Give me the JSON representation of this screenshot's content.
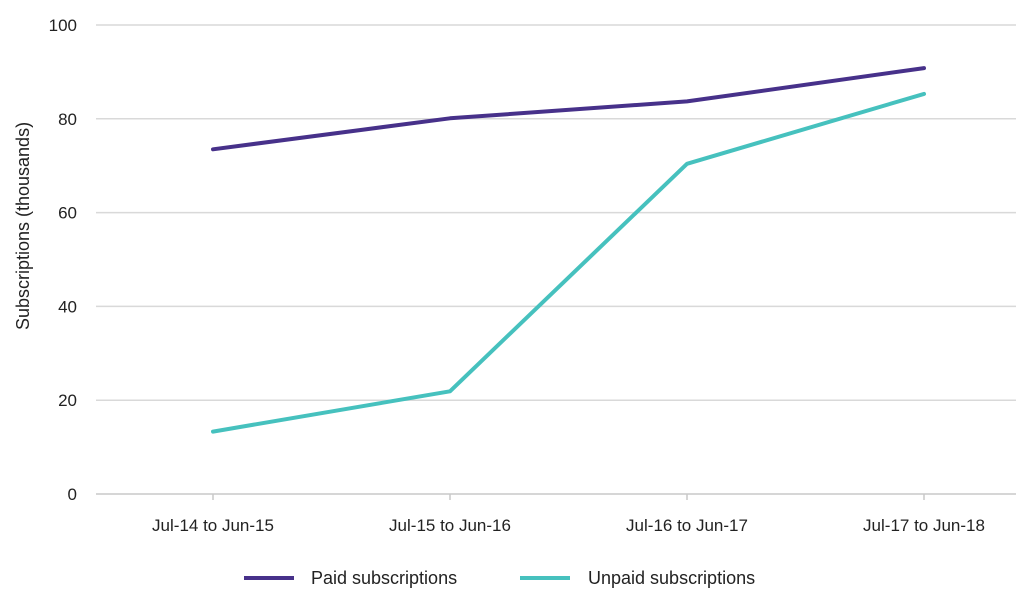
{
  "chart_data": {
    "type": "line",
    "title": "",
    "xlabel": "",
    "ylabel": "Subscriptions (thousands)",
    "categories": [
      "Jul-14 to Jun-15",
      "Jul-15 to Jun-16",
      "Jul-16 to Jun-17",
      "Jul-17 to Jun-18"
    ],
    "ylim": [
      0,
      100
    ],
    "yticks": [
      0,
      20,
      40,
      60,
      80,
      100
    ],
    "grid": true,
    "legend_position": "bottom",
    "series": [
      {
        "name": "Paid subscriptions",
        "color": "#47318a",
        "values": [
          73.5,
          80.1,
          83.7,
          90.8
        ]
      },
      {
        "name": "Unpaid subscriptions",
        "color": "#46c1be",
        "values": [
          13.3,
          21.9,
          70.4,
          85.3
        ]
      }
    ]
  }
}
